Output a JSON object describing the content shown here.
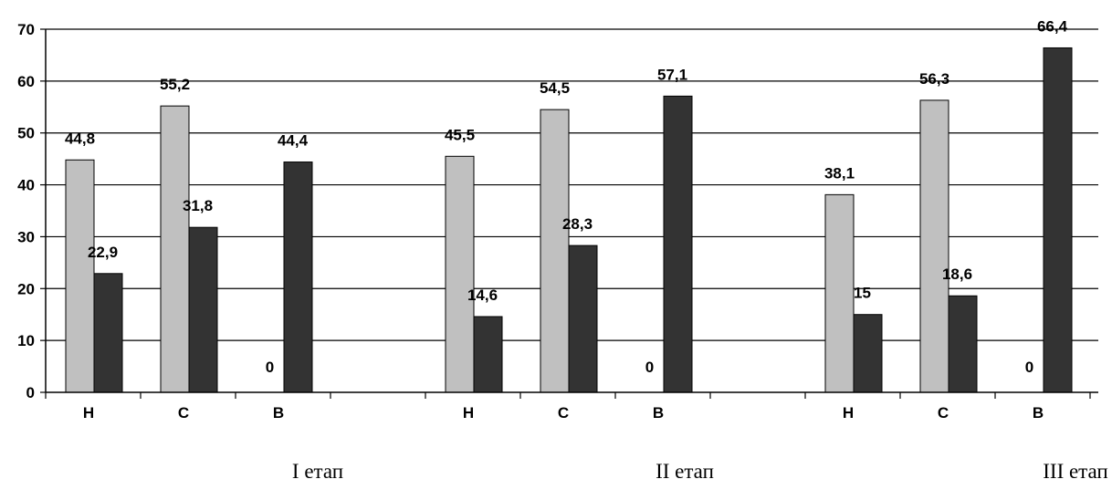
{
  "chart_data": {
    "type": "bar",
    "ylim": [
      0,
      70
    ],
    "yticks": [
      0,
      10,
      20,
      30,
      40,
      50,
      60,
      70
    ],
    "grid": true,
    "legend": "none",
    "colors": {
      "light": "#c0c0c0",
      "dark": "#333333"
    },
    "groups": [
      {
        "stage": "I етап",
        "categories": [
          {
            "label": "Н",
            "values": [
              44.8,
              22.9
            ],
            "labels": [
              "44,8",
              "22,9"
            ]
          },
          {
            "label": "С",
            "values": [
              55.2,
              31.8
            ],
            "labels": [
              "55,2",
              "31,8"
            ]
          },
          {
            "label": "В",
            "values": [
              0,
              44.4
            ],
            "labels": [
              "0",
              "44,4"
            ]
          }
        ]
      },
      {
        "stage": "II етап",
        "categories": [
          {
            "label": "Н",
            "values": [
              45.5,
              14.6
            ],
            "labels": [
              "45,5",
              "14,6"
            ]
          },
          {
            "label": "С",
            "values": [
              54.5,
              28.3
            ],
            "labels": [
              "54,5",
              "28,3"
            ]
          },
          {
            "label": "В",
            "values": [
              0,
              57.1
            ],
            "labels": [
              "0",
              "57,1"
            ]
          }
        ]
      },
      {
        "stage": "III етап",
        "categories": [
          {
            "label": "Н",
            "values": [
              38.1,
              15
            ],
            "labels": [
              "38,1",
              "15"
            ]
          },
          {
            "label": "С",
            "values": [
              56.3,
              18.6
            ],
            "labels": [
              "56,3",
              "18,6"
            ]
          },
          {
            "label": "В",
            "values": [
              0,
              66.4
            ],
            "labels": [
              "0",
              "66,4"
            ]
          }
        ]
      }
    ]
  }
}
